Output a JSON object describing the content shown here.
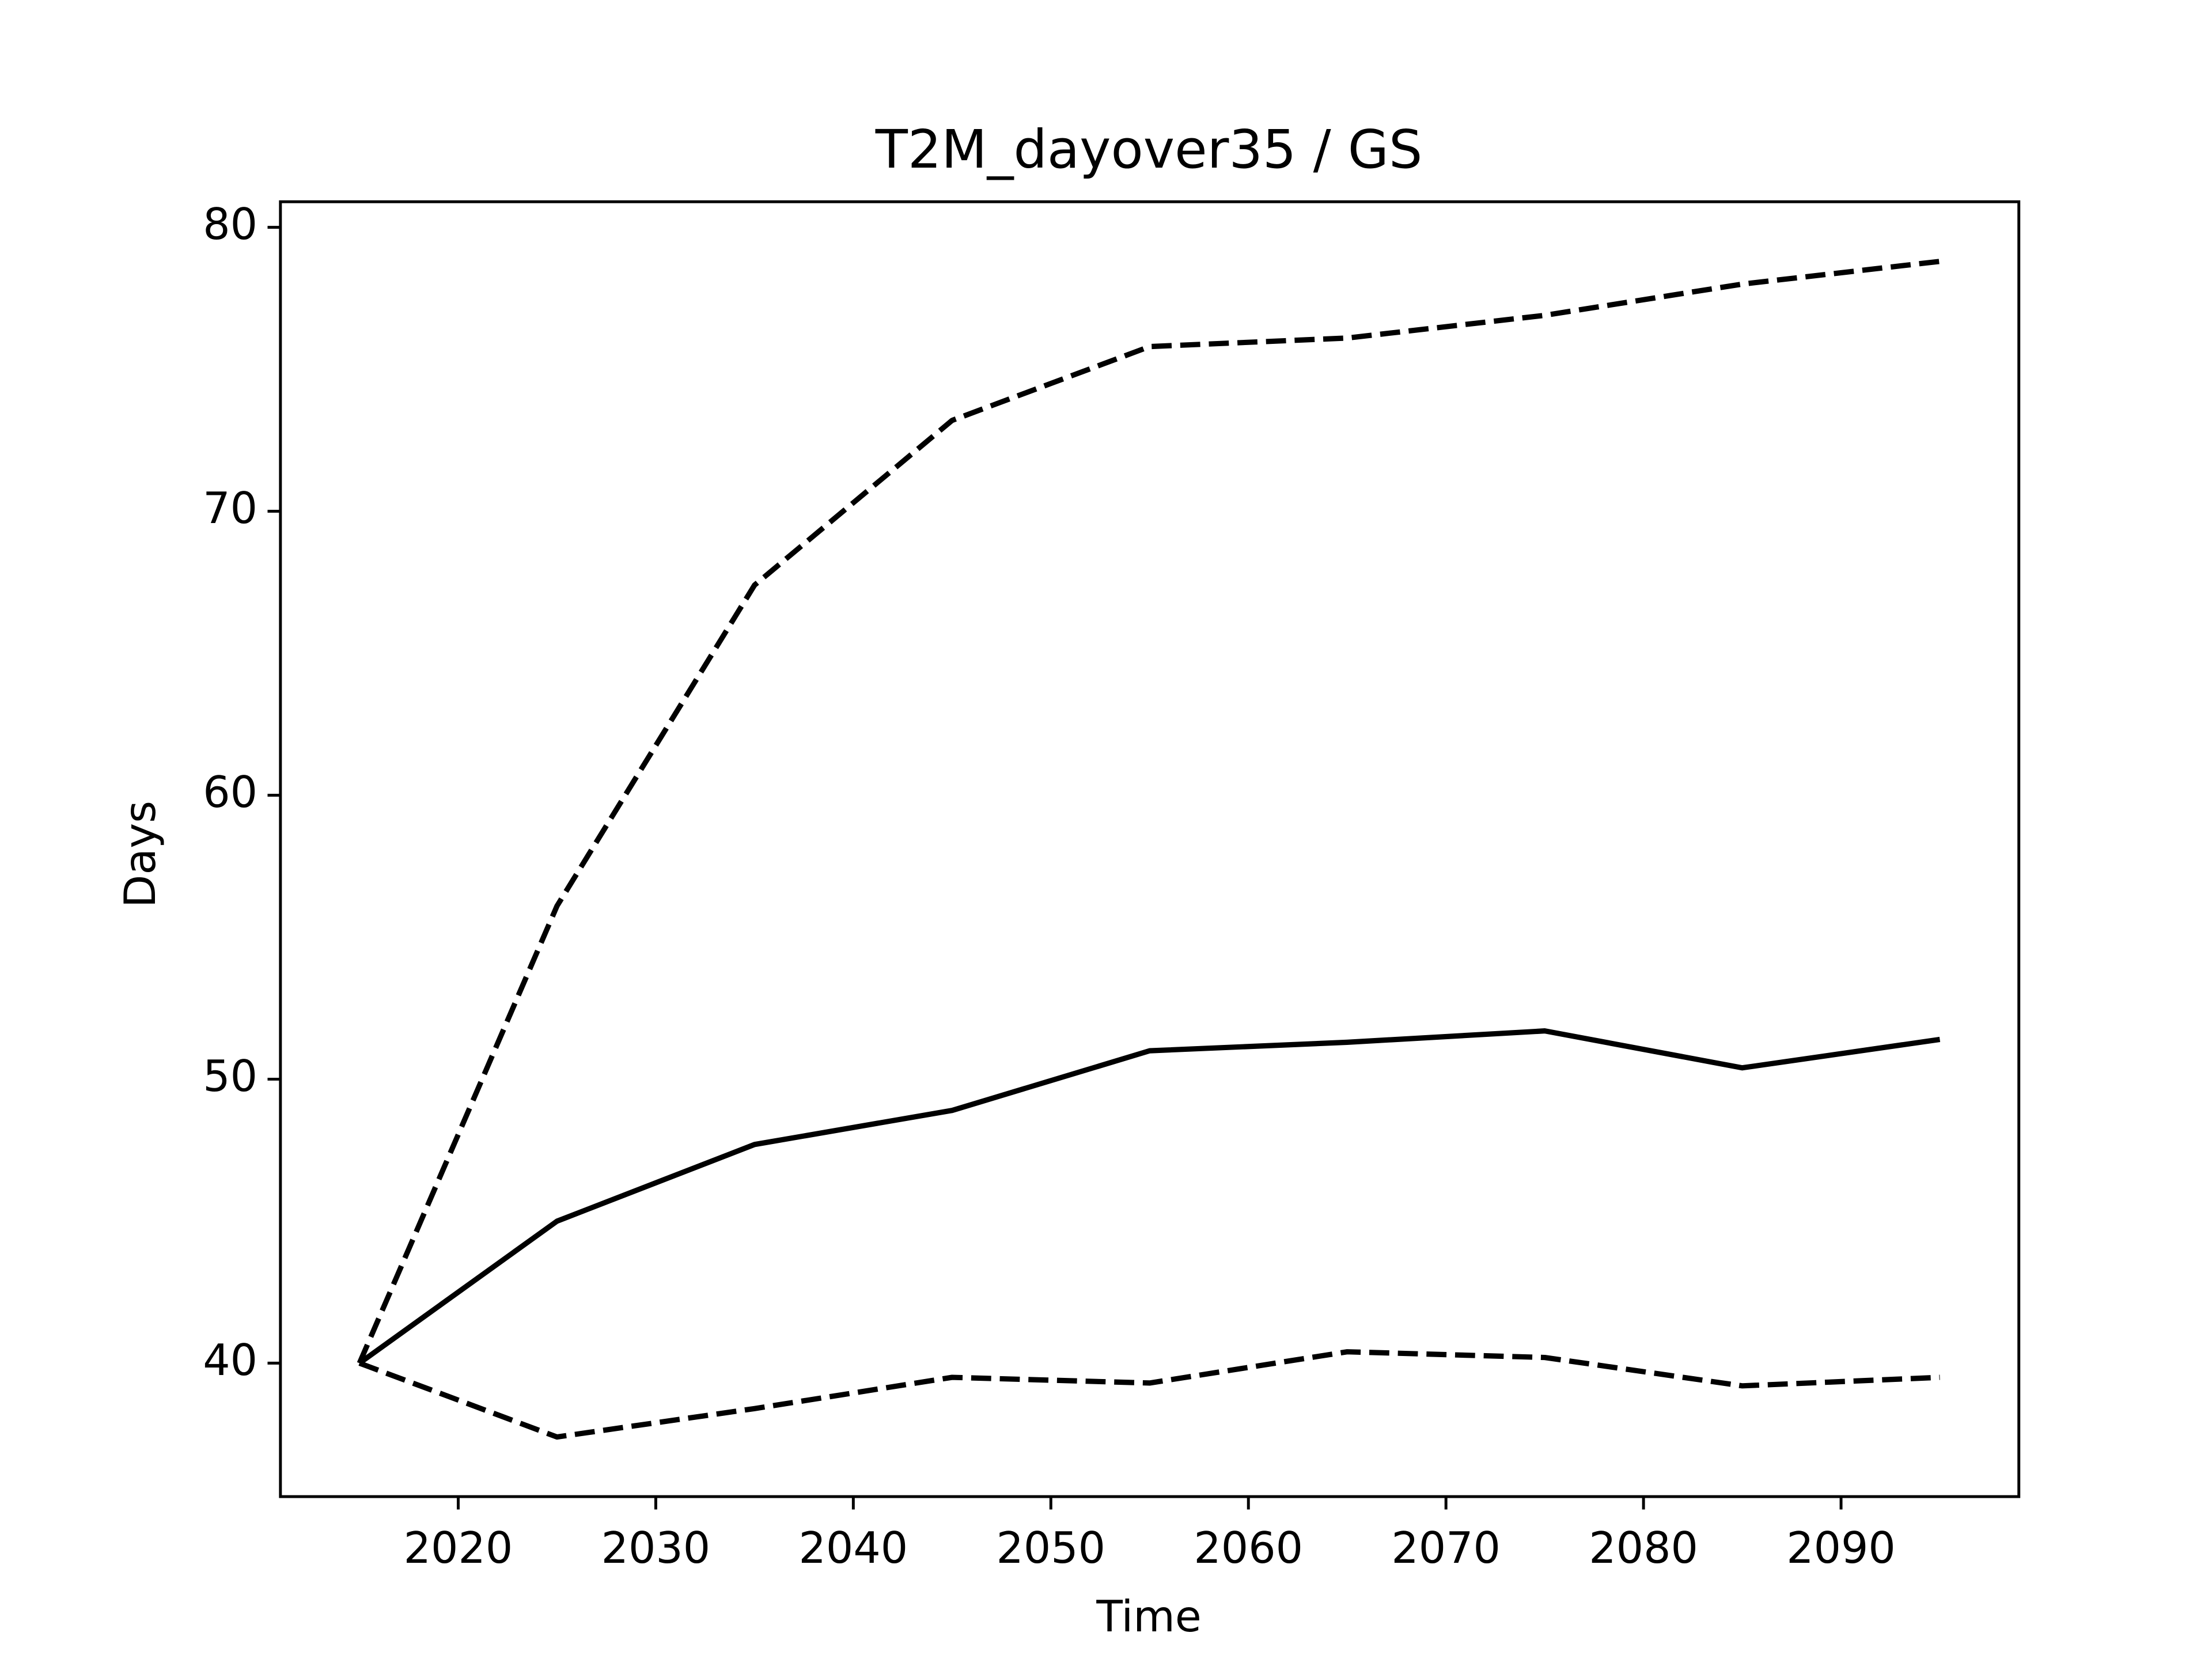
{
  "chart_data": {
    "type": "line",
    "title": "T2M_dayover35 / GS",
    "x_label": "Time",
    "y_label": "Days",
    "x": [
      2015,
      2025,
      2035,
      2045,
      2055,
      2065,
      2075,
      2085,
      2095
    ],
    "series": [
      {
        "color": "#000000",
        "linestyle": "solid",
        "values": [
          40,
          45.0,
          47.7,
          48.9,
          51.0,
          51.3,
          51.7,
          50.4,
          51.4
        ]
      },
      {
        "color": "#000000",
        "linestyle": "dashed",
        "values": [
          40,
          56.1,
          67.4,
          73.2,
          75.8,
          76.1,
          76.9,
          78.0,
          78.8
        ]
      },
      {
        "color": "#000000",
        "linestyle": "dashed",
        "values": [
          40,
          37.4,
          38.4,
          39.5,
          39.3,
          40.4,
          40.2,
          39.2,
          39.5
        ]
      }
    ],
    "xlim": [
      2011,
      2099
    ],
    "xticks": [
      2020,
      2030,
      2040,
      2050,
      2060,
      2070,
      2080,
      2090
    ],
    "ylim": [
      35.3,
      80.9
    ],
    "yticks": [
      40,
      50,
      60,
      70,
      80
    ],
    "grid": false
  }
}
